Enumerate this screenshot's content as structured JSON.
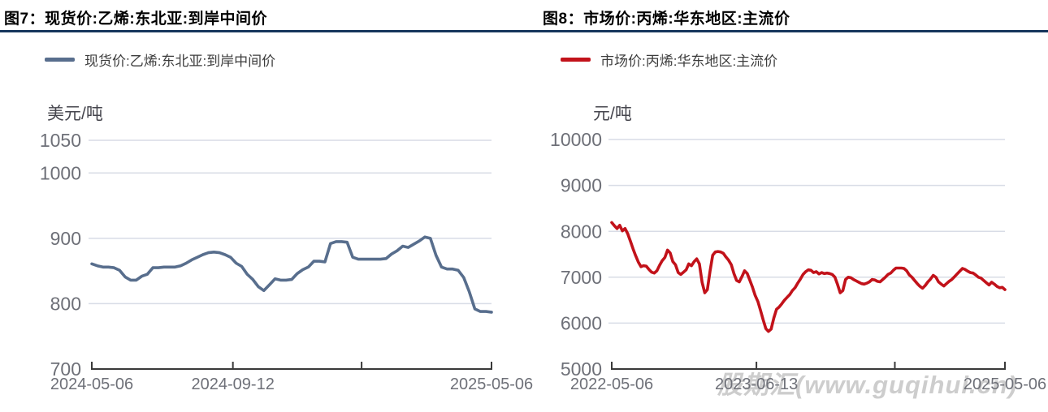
{
  "style": {
    "rule_color": "#16365c",
    "grid_color": "#d8dce6",
    "axis_color": "#3a3a3a",
    "tick_label_color": "#6e7078",
    "unit_label_color": "#45454d",
    "legend_text_color": "#3d3d3d",
    "watermark_color": "#cdcdcd"
  },
  "chart_data": [
    {
      "type": "line",
      "panel": "fig7",
      "title": "图7：现货价:乙烯:东北亚:到岸中间价",
      "legend": "现货价:乙烯:东北亚:到岸中间价",
      "unit": "美元/吨",
      "line_color": "#586e8d",
      "ylim": [
        700,
        1050
      ],
      "yticks": [
        1050,
        1000,
        900,
        800,
        700
      ],
      "xticks": [
        {
          "pos": 0,
          "label": "2024-05-06"
        },
        {
          "pos": 0.353,
          "label": "2024-09-12"
        },
        {
          "pos": 0.675,
          "label": ""
        },
        {
          "pos": 1,
          "label": "2025-05-06"
        }
      ],
      "values": [
        861,
        858,
        856,
        856,
        855,
        851,
        841,
        836,
        836,
        842,
        845,
        855,
        855,
        856,
        856,
        856,
        858,
        862,
        867,
        871,
        875,
        878,
        879,
        878,
        875,
        871,
        862,
        857,
        845,
        837,
        826,
        820,
        829,
        838,
        836,
        836,
        837,
        846,
        852,
        856,
        865,
        865,
        864,
        892,
        895,
        895,
        894,
        871,
        868,
        868,
        868,
        868,
        868,
        869,
        876,
        881,
        888,
        886,
        891,
        896,
        902,
        900,
        874,
        856,
        853,
        853,
        851,
        840,
        818,
        792,
        788,
        788,
        787
      ]
    },
    {
      "type": "line",
      "panel": "fig8",
      "title": "图8：市场价:丙烯:华东地区:主流价",
      "legend": "市场价:丙烯:华东地区:主流价",
      "unit": "元/吨",
      "line_color": "#c2121a",
      "ylim": [
        5000,
        10000
      ],
      "yticks": [
        10000,
        9000,
        8000,
        7000,
        6000,
        5000
      ],
      "xticks": [
        {
          "pos": 0,
          "label": "2022-05-06"
        },
        {
          "pos": 0.368,
          "label": "2023-06-13"
        },
        {
          "pos": 0.72,
          "label": ""
        },
        {
          "pos": 1,
          "label": "2025-05-06"
        }
      ],
      "values": [
        8190,
        8120,
        8060,
        8130,
        8010,
        8060,
        7950,
        7790,
        7620,
        7470,
        7330,
        7230,
        7250,
        7240,
        7170,
        7110,
        7090,
        7140,
        7260,
        7360,
        7430,
        7590,
        7530,
        7340,
        7270,
        7100,
        7060,
        7110,
        7160,
        7290,
        7250,
        7340,
        7400,
        7290,
        6890,
        6660,
        6730,
        7130,
        7480,
        7550,
        7560,
        7550,
        7520,
        7440,
        7370,
        7270,
        7080,
        6930,
        6900,
        7010,
        7140,
        7080,
        6930,
        6780,
        6600,
        6470,
        6280,
        6070,
        5880,
        5820,
        5870,
        6110,
        6300,
        6350,
        6420,
        6500,
        6560,
        6620,
        6710,
        6770,
        6870,
        6960,
        7060,
        7120,
        7160,
        7150,
        7100,
        7120,
        7070,
        7100,
        7080,
        7090,
        7080,
        7060,
        7000,
        6840,
        6660,
        6710,
        6950,
        7000,
        6990,
        6950,
        6920,
        6890,
        6860,
        6850,
        6870,
        6900,
        6950,
        6940,
        6910,
        6900,
        6950,
        7000,
        7060,
        7090,
        7150,
        7200,
        7200,
        7200,
        7190,
        7140,
        7050,
        7000,
        6930,
        6860,
        6800,
        6760,
        6820,
        6900,
        6960,
        7040,
        7000,
        6900,
        6850,
        6810,
        6860,
        6910,
        6950,
        7010,
        7070,
        7130,
        7190,
        7170,
        7130,
        7100,
        7090,
        7050,
        7000,
        6980,
        6930,
        6880,
        6830,
        6890,
        6850,
        6800,
        6770,
        6780,
        6730
      ],
      "watermark": "股期汇(www.guqihui.cn)"
    }
  ]
}
